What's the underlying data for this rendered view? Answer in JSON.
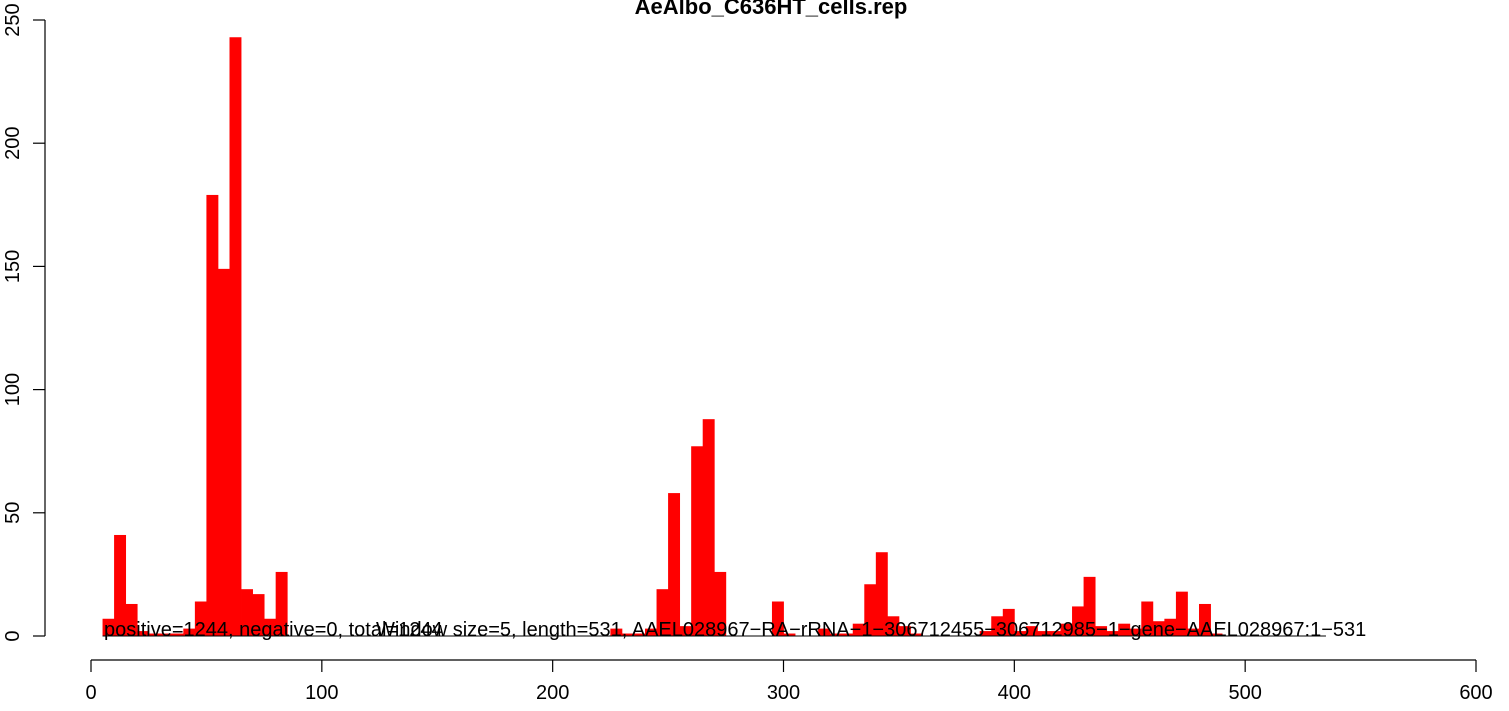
{
  "chart_data": {
    "type": "bar",
    "title": "AeAlbo_C636HT_cells.rep",
    "xlabel": "",
    "ylabel": "",
    "xlim": [
      0,
      600
    ],
    "ylim": [
      0,
      250
    ],
    "x_ticks": [
      0,
      100,
      200,
      300,
      400,
      500,
      600
    ],
    "y_ticks": [
      0,
      50,
      100,
      150,
      200,
      250
    ],
    "bar_color": "#ff0000",
    "bin_width": 5,
    "annotations": [
      "positive=1244, negative=0, total=1244",
      "Window size=5, length=531, AAEL028967−RA−rRNA−1−306712455−306712985−1−gene−AAEL028967:1−531"
    ],
    "series": [
      {
        "x_start": [
          5,
          10,
          15,
          20,
          25,
          30,
          35,
          40,
          45,
          50,
          55,
          60,
          65,
          70,
          75,
          80,
          85,
          90,
          95,
          100,
          105,
          110,
          115,
          120,
          125,
          130,
          135,
          140,
          145,
          150,
          155,
          160,
          165,
          170,
          175,
          180,
          185,
          190,
          195,
          200,
          205,
          210,
          215,
          220,
          225,
          230,
          235,
          240,
          245,
          250,
          255,
          260,
          265,
          270,
          275,
          280,
          285,
          290,
          295,
          300,
          305,
          310,
          315,
          320,
          325,
          330,
          335,
          340,
          345,
          350,
          355,
          360,
          365,
          370,
          375,
          380,
          385,
          390,
          395,
          400,
          405,
          410,
          415,
          420,
          425,
          430,
          435,
          440,
          445,
          450,
          455,
          460,
          465,
          470,
          475,
          480,
          485,
          490,
          495,
          500,
          505,
          510,
          515,
          520,
          525,
          530
        ],
        "values": [
          7,
          41,
          13,
          2,
          1,
          1,
          1,
          3,
          14,
          179,
          149,
          243,
          19,
          17,
          7,
          26,
          0,
          0,
          0,
          0,
          0,
          0,
          0,
          0,
          0,
          0,
          0,
          0,
          0,
          0,
          0,
          0,
          0,
          0,
          0,
          0,
          0,
          0,
          0,
          0,
          0,
          0,
          0,
          0,
          3,
          1,
          1,
          3,
          19,
          58,
          4,
          77,
          88,
          26,
          0,
          0,
          0,
          0,
          14,
          1,
          0,
          0,
          3,
          1,
          1,
          5,
          21,
          34,
          8,
          4,
          1,
          0,
          0,
          0,
          0,
          0,
          2,
          8,
          11,
          2,
          4,
          2,
          2,
          5,
          12,
          24,
          4,
          2,
          5,
          3,
          14,
          6,
          7,
          18,
          3,
          13,
          1,
          0,
          0,
          0,
          0,
          0,
          0,
          0,
          0,
          0
        ]
      }
    ]
  }
}
